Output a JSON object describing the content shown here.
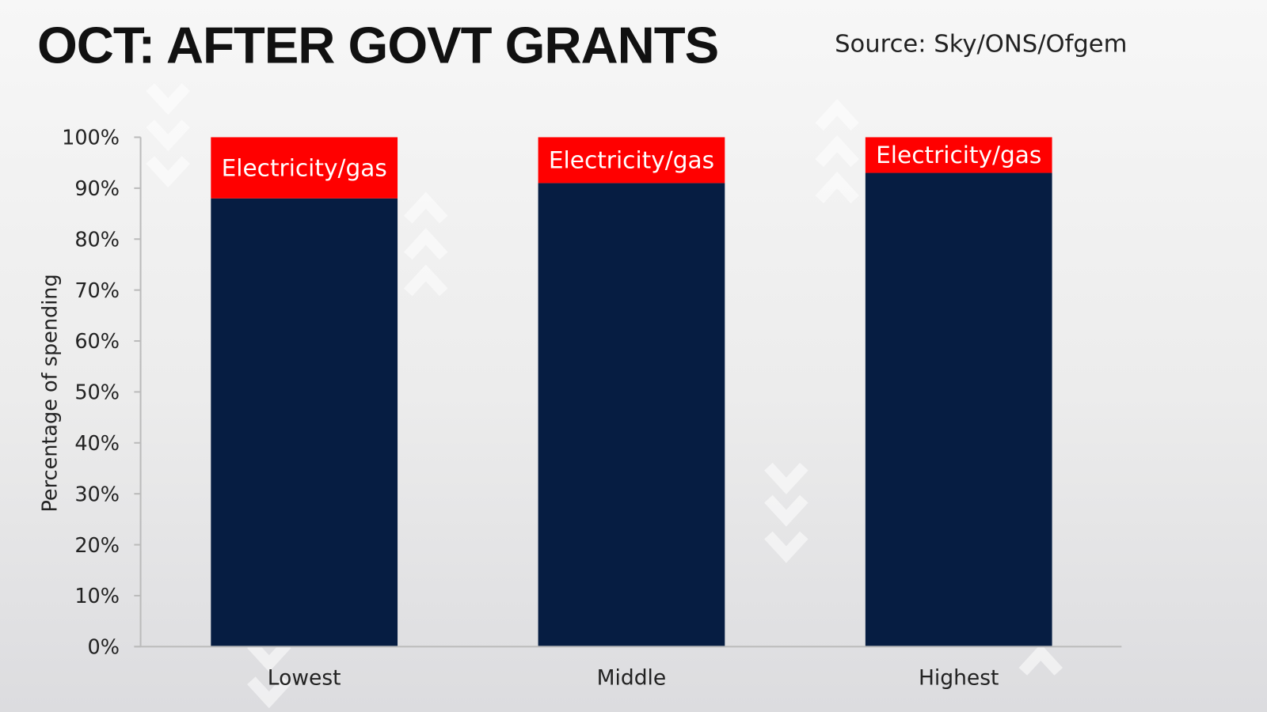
{
  "chart_data": {
    "type": "bar",
    "stacked": true,
    "title": "OCT: AFTER GOVT GRANTS",
    "source": "Source: Sky/ONS/Ofgem",
    "xlabel": "",
    "ylabel": "Percentage of spending",
    "ylim": [
      0,
      100
    ],
    "yticks": [
      "0%",
      "10%",
      "20%",
      "30%",
      "40%",
      "50%",
      "60%",
      "70%",
      "80%",
      "90%",
      "100%"
    ],
    "grid": false,
    "categories": [
      "Lowest",
      "Middle",
      "Highest"
    ],
    "series": [
      {
        "values": [
          88,
          91,
          93
        ],
        "color": "#061d42"
      },
      {
        "name": "Electricity/gas",
        "values": [
          12,
          9,
          7
        ],
        "color": "#ff0000"
      }
    ]
  }
}
